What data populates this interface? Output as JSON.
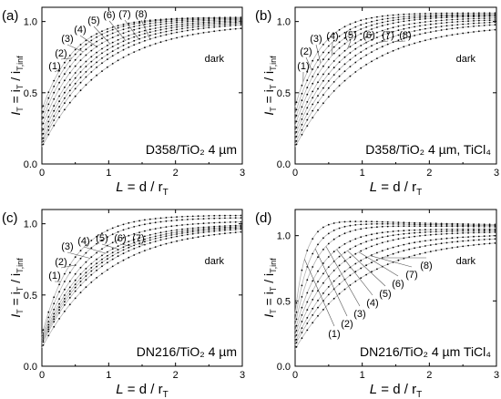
{
  "figure": {
    "axis_x_label": {
      "main": "L",
      "eq": " = d / r",
      "sub": "T"
    },
    "axis_y_label": {
      "main": "I",
      "sub1": "T",
      "eq": " = i",
      "sub2": "T",
      "sep": " / i",
      "sub3": "T,inf"
    }
  },
  "chart_data": [
    {
      "type": "scatter",
      "panel_label": "(a)",
      "annotation": "D358/TiO₂ 4 µm",
      "xlim": [
        0,
        3
      ],
      "ylim": [
        0,
        1.1
      ],
      "xticks": [
        "0",
        "1",
        "2",
        "3"
      ],
      "yticks": [
        "0.0",
        "0.5",
        "1.0"
      ],
      "curve_labels": [
        "(1)",
        "(2)",
        "(3)",
        "(4)",
        "(5)",
        "(6)",
        "(7)",
        "(8)",
        "dark"
      ],
      "series": [
        {
          "name": "(1)",
          "i0": 0.38,
          "iinf": 1.03,
          "k": 2.1
        },
        {
          "name": "(2)",
          "i0": 0.34,
          "iinf": 1.03,
          "k": 1.95
        },
        {
          "name": "(3)",
          "i0": 0.3,
          "iinf": 1.025,
          "k": 1.8
        },
        {
          "name": "(4)",
          "i0": 0.26,
          "iinf": 1.02,
          "k": 1.65
        },
        {
          "name": "(5)",
          "i0": 0.22,
          "iinf": 1.015,
          "k": 1.5
        },
        {
          "name": "(6)",
          "i0": 0.19,
          "iinf": 1.01,
          "k": 1.4
        },
        {
          "name": "(7)",
          "i0": 0.16,
          "iinf": 1.005,
          "k": 1.3
        },
        {
          "name": "(8)",
          "i0": 0.14,
          "iinf": 1.0,
          "k": 1.2
        },
        {
          "name": "dark",
          "i0": 0.12,
          "iinf": 0.99,
          "k": 1.05
        }
      ]
    },
    {
      "type": "scatter",
      "panel_label": "(b)",
      "annotation": "D358/TiO₂ 4 µm, TiCl₄",
      "xlim": [
        0,
        3
      ],
      "ylim": [
        0,
        1.1
      ],
      "xticks": [
        "0",
        "1",
        "2",
        "3"
      ],
      "yticks": [
        "0.0",
        "0.5",
        "1.0"
      ],
      "curve_labels": [
        "(1)",
        "(2)",
        "(3)",
        "(4)",
        "(5)",
        "(6)",
        "(7)",
        "(8)",
        "dark"
      ],
      "series": [
        {
          "name": "(1)",
          "i0": 0.4,
          "iinf": 1.06,
          "k": 2.6
        },
        {
          "name": "(2)",
          "i0": 0.35,
          "iinf": 1.05,
          "k": 2.3
        },
        {
          "name": "(3)",
          "i0": 0.31,
          "iinf": 1.045,
          "k": 2.05
        },
        {
          "name": "(4)",
          "i0": 0.27,
          "iinf": 1.04,
          "k": 1.85
        },
        {
          "name": "(5)",
          "i0": 0.23,
          "iinf": 1.03,
          "k": 1.65
        },
        {
          "name": "(6)",
          "i0": 0.2,
          "iinf": 1.02,
          "k": 1.5
        },
        {
          "name": "(7)",
          "i0": 0.17,
          "iinf": 1.01,
          "k": 1.35
        },
        {
          "name": "(8)",
          "i0": 0.14,
          "iinf": 1.0,
          "k": 1.22
        },
        {
          "name": "dark",
          "i0": 0.12,
          "iinf": 0.98,
          "k": 1.05
        }
      ]
    },
    {
      "type": "scatter",
      "panel_label": "(c)",
      "annotation": "DN216/TiO₂ 4 µm",
      "xlim": [
        0,
        3
      ],
      "ylim": [
        0,
        1.1
      ],
      "xticks": [
        "0",
        "1",
        "2",
        "3"
      ],
      "yticks": [
        "0.0",
        "0.5",
        "1.0"
      ],
      "curve_labels": [
        "(1)",
        "(2)",
        "(3)",
        "(4)",
        "(5)",
        "(6)",
        "(7)",
        "dark"
      ],
      "series": [
        {
          "name": "(1)",
          "i0": 0.22,
          "iinf": 1.06,
          "k": 2.1
        },
        {
          "name": "(2)",
          "i0": 0.2,
          "iinf": 1.045,
          "k": 1.85
        },
        {
          "name": "(3)",
          "i0": 0.19,
          "iinf": 1.02,
          "k": 1.6
        },
        {
          "name": "(4)",
          "i0": 0.18,
          "iinf": 1.0,
          "k": 1.45
        },
        {
          "name": "(5)",
          "i0": 0.17,
          "iinf": 0.995,
          "k": 1.35
        },
        {
          "name": "(6)",
          "i0": 0.16,
          "iinf": 0.99,
          "k": 1.28
        },
        {
          "name": "(7)",
          "i0": 0.15,
          "iinf": 0.985,
          "k": 1.2
        },
        {
          "name": "dark",
          "i0": 0.13,
          "iinf": 0.98,
          "k": 1.05
        }
      ]
    },
    {
      "type": "scatter",
      "panel_label": "(d)",
      "annotation": "DN216/TiO₂ 4 µm TiCl₄",
      "xlim": [
        0,
        3
      ],
      "ylim": [
        0,
        1.2
      ],
      "xticks": [
        "0",
        "1",
        "2",
        "3"
      ],
      "yticks": [
        "0.0",
        "0.5",
        "1.0"
      ],
      "curve_labels": [
        "(1)",
        "(2)",
        "(3)",
        "(4)",
        "(5)",
        "(6)",
        "(7)",
        "(8)",
        "dark"
      ],
      "series": [
        {
          "name": "(1)",
          "i0": 0.4,
          "iinf": 1.08,
          "k": 6.5,
          "peak": 0.12,
          "pk": 1.4
        },
        {
          "name": "(2)",
          "i0": 0.35,
          "iinf": 1.07,
          "k": 4.5,
          "peak": 0.08,
          "pk": 1.2
        },
        {
          "name": "(3)",
          "i0": 0.31,
          "iinf": 1.06,
          "k": 3.4,
          "peak": 0.05,
          "pk": 1.0
        },
        {
          "name": "(4)",
          "i0": 0.27,
          "iinf": 1.05,
          "k": 2.6
        },
        {
          "name": "(5)",
          "i0": 0.24,
          "iinf": 1.04,
          "k": 2.1
        },
        {
          "name": "(6)",
          "i0": 0.21,
          "iinf": 1.03,
          "k": 1.75
        },
        {
          "name": "(7)",
          "i0": 0.18,
          "iinf": 1.01,
          "k": 1.45
        },
        {
          "name": "(8)",
          "i0": 0.16,
          "iinf": 0.995,
          "k": 1.25
        },
        {
          "name": "dark",
          "i0": 0.13,
          "iinf": 0.98,
          "k": 1.05
        }
      ]
    }
  ]
}
